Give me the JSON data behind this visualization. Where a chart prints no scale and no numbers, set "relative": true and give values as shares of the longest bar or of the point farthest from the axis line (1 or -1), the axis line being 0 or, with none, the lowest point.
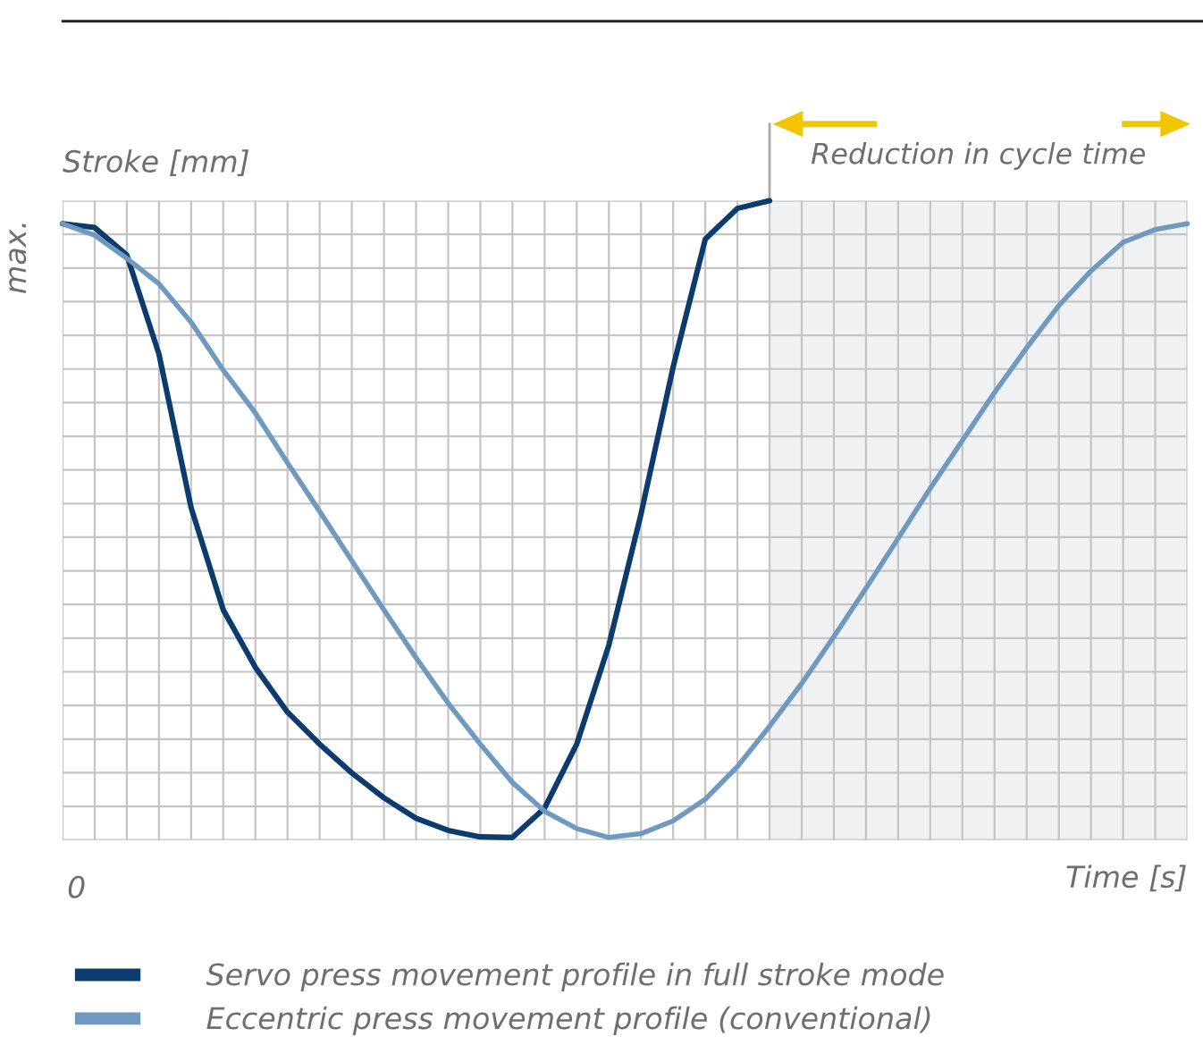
{
  "chart_data": {
    "type": "line",
    "relative": true,
    "ylabel": "Stroke [mm]",
    "xlabel": "Time [s]",
    "categories": [
      null,
      null,
      null,
      null,
      null,
      null,
      null,
      null,
      null,
      null,
      null,
      null,
      null,
      null,
      null,
      null,
      null,
      null,
      null,
      null,
      null,
      null,
      null,
      null,
      null,
      null,
      null,
      null,
      null,
      null,
      null,
      null,
      null,
      null,
      null,
      null
    ],
    "grid": true,
    "legend": "bottom",
    "line_style": "solid",
    "marker": "none",
    "annotations": [
      "max.",
      "0",
      "Reduction in cycle time"
    ],
    "series": [
      {
        "name": "Servo press movement profile in full stroke mode",
        "color": "#0b3c6d",
        "values": [
          0.964,
          0.958,
          0.915,
          0.76,
          0.52,
          0.36,
          0.27,
          0.2,
          0.15,
          0.105,
          0.066,
          0.034,
          0.015,
          0.005,
          0.004,
          0.05,
          0.15,
          0.305,
          0.51,
          0.74,
          0.94,
          0.988,
          1.0,
          null,
          null,
          null,
          null,
          null,
          null,
          null,
          null,
          null,
          null,
          null,
          null,
          null
        ]
      },
      {
        "name": "Eccentric press movement profile (conventional)",
        "color": "#7099c0",
        "values": [
          0.964,
          0.946,
          0.91,
          0.87,
          0.81,
          0.735,
          0.668,
          0.59,
          0.514,
          0.437,
          0.36,
          0.285,
          0.214,
          0.15,
          0.09,
          0.045,
          0.018,
          0.004,
          0.01,
          0.03,
          0.064,
          0.115,
          0.178,
          0.245,
          0.318,
          0.394,
          0.472,
          0.55,
          0.625,
          0.7,
          0.77,
          0.836,
          0.89,
          0.935,
          0.955,
          0.964
        ]
      }
    ]
  }
}
